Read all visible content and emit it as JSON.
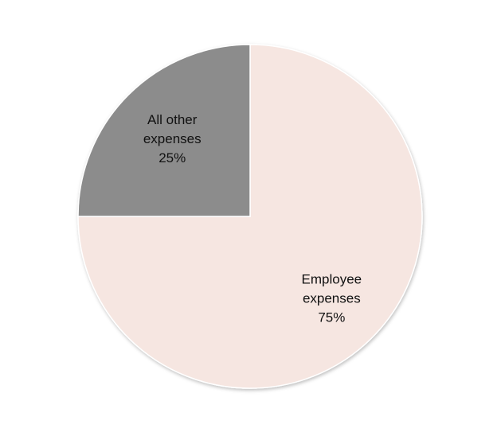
{
  "chart_data": {
    "type": "pie",
    "slices": [
      {
        "label_lines": [
          "Employee",
          "expenses",
          "75%"
        ],
        "category": "Employee expenses",
        "value": 75,
        "percent_label": "75%",
        "color": "#F6E6E1"
      },
      {
        "label_lines": [
          "All other",
          "expenses",
          "25%"
        ],
        "category": "All other expenses",
        "value": 25,
        "percent_label": "25%",
        "color": "#8C8C8C"
      }
    ],
    "start_angle_deg": 0,
    "direction": "clockwise",
    "stroke_color": "#FFFFFF",
    "legend": "none"
  }
}
